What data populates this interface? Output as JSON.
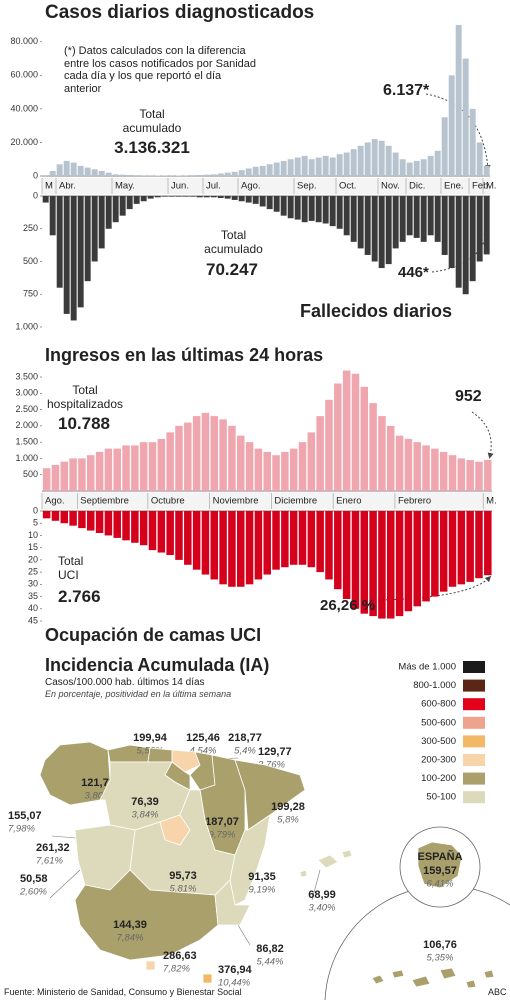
{
  "chart_data": [
    {
      "type": "bar",
      "title": "Casos diarios diagnosticados",
      "color": "#b7c4cf",
      "categories": [
        "M",
        null,
        "Abr.",
        null,
        null,
        null,
        null,
        null,
        null,
        null,
        "May.",
        null,
        null,
        null,
        null,
        null,
        null,
        null,
        "Jun.",
        null,
        null,
        null,
        null,
        "Jul.",
        null,
        null,
        null,
        null,
        "Ago.",
        null,
        null,
        null,
        null,
        null,
        null,
        null,
        "Sep.",
        null,
        null,
        null,
        null,
        null,
        "Oct.",
        null,
        null,
        null,
        null,
        null,
        "Nov.",
        null,
        null,
        null,
        "Dic.",
        null,
        null,
        null,
        null,
        "Ene.",
        null,
        null,
        null,
        "Feb.",
        null,
        "M."
      ],
      "values": [
        500,
        3000,
        7000,
        9000,
        8000,
        6000,
        5000,
        4000,
        3000,
        2000,
        1000,
        800,
        600,
        500,
        400,
        400,
        300,
        350,
        400,
        300,
        400,
        500,
        600,
        800,
        1000,
        1500,
        2000,
        2500,
        3500,
        4500,
        5500,
        6000,
        7000,
        8000,
        9000,
        10000,
        11000,
        12000,
        10000,
        11000,
        12000,
        11000,
        13000,
        14000,
        16000,
        18000,
        20000,
        22000,
        21000,
        18000,
        14000,
        10000,
        8000,
        9000,
        10000,
        12000,
        15000,
        35000,
        60000,
        90000,
        70000,
        40000,
        20000,
        6137
      ],
      "ylim": [
        0,
        90000
      ],
      "yticks": [
        0,
        {
          "value": 20000,
          "label": "20.000"
        },
        {
          "value": 40000,
          "label": "40.000"
        },
        {
          "value": 60000,
          "label": "60.000"
        },
        {
          "value": 80000,
          "label": "80.000"
        }
      ],
      "annotations": [
        "(*) Datos calculados con la diferencia entre los casos notificados por Sanidad cada día y los que reportó el día anterior",
        "Total acumulado",
        "3.136.321",
        "6.137*"
      ]
    },
    {
      "type": "bar",
      "title": "Fallecidos diarios",
      "color": "#3b3b3b",
      "y_inverted": true,
      "values": [
        50,
        300,
        700,
        900,
        950,
        850,
        650,
        500,
        400,
        250,
        200,
        150,
        100,
        60,
        40,
        20,
        10,
        5,
        5,
        5,
        5,
        5,
        10,
        10,
        10,
        15,
        20,
        30,
        40,
        50,
        60,
        80,
        100,
        120,
        150,
        170,
        180,
        200,
        190,
        200,
        210,
        230,
        250,
        300,
        350,
        400,
        450,
        500,
        550,
        520,
        400,
        350,
        300,
        320,
        350,
        300,
        350,
        450,
        550,
        700,
        750,
        650,
        500,
        446
      ],
      "ylim": [
        0,
        1000
      ],
      "yticks": [
        0,
        250,
        500,
        750,
        {
          "value": 1000,
          "label": "1.000"
        }
      ],
      "annotations": [
        "Total acumulado",
        "70.247",
        "446*"
      ]
    },
    {
      "type": "bar",
      "title": "Ingresos en las últimas 24 horas",
      "color": "#f0a6ae",
      "categories": [
        "Ago.",
        null,
        null,
        null,
        "Septiembre",
        null,
        null,
        null,
        null,
        null,
        null,
        null,
        "Octubre",
        null,
        null,
        null,
        null,
        null,
        null,
        "Noviembre",
        null,
        null,
        null,
        null,
        null,
        null,
        "Diciembre",
        null,
        null,
        null,
        null,
        null,
        null,
        "Enero",
        null,
        null,
        null,
        null,
        null,
        null,
        "Febrero",
        null,
        null,
        null,
        null,
        null,
        null,
        null,
        null,
        null,
        "M."
      ],
      "values": [
        700,
        800,
        900,
        1000,
        1000,
        1100,
        1200,
        1300,
        1300,
        1400,
        1400,
        1500,
        1500,
        1600,
        1800,
        2000,
        2100,
        2300,
        2400,
        2300,
        2200,
        2000,
        1700,
        1500,
        1300,
        1200,
        1100,
        1200,
        1300,
        1500,
        1800,
        2300,
        2800,
        3300,
        3700,
        3600,
        3200,
        2700,
        2300,
        2000,
        1700,
        1600,
        1500,
        1400,
        1300,
        1200,
        1100,
        1000,
        950,
        900,
        952
      ],
      "ylim": [
        0,
        3700
      ],
      "yticks": [
        500,
        {
          "value": 1000,
          "label": "1.000"
        },
        {
          "value": 1500,
          "label": "1.500"
        },
        {
          "value": 2000,
          "label": "2.000"
        },
        {
          "value": 2500,
          "label": "2.500"
        },
        {
          "value": 3000,
          "label": "3.000"
        },
        {
          "value": 3500,
          "label": "3.500"
        }
      ],
      "annotations": [
        "Total hospitalizados",
        "10.788",
        "952"
      ]
    },
    {
      "type": "bar",
      "title": "Ocupación de camas UCI",
      "color": "#d4001c",
      "y_inverted": true,
      "values": [
        3,
        4,
        5,
        6,
        7,
        8,
        9,
        10,
        11,
        12,
        13,
        14,
        16,
        17,
        18,
        20,
        22,
        24,
        26,
        28,
        30,
        31,
        31,
        30,
        28,
        26,
        24,
        23,
        22,
        22,
        23,
        25,
        28,
        32,
        36,
        40,
        42,
        43,
        44,
        44,
        43,
        41,
        39,
        37,
        35,
        33,
        31,
        30,
        29,
        27.5,
        26.26
      ],
      "ylim": [
        0,
        45
      ],
      "yticks": [
        0,
        5,
        10,
        15,
        20,
        25,
        30,
        35,
        40,
        45
      ],
      "annotations": [
        "Total UCI",
        "2.766",
        "26,26 %"
      ]
    }
  ],
  "map": {
    "title": "Incidencia Acumulada (IA)",
    "subtitle": "Casos/100.000 hab. últimos 14 días",
    "note": "En porcentaje, positividad en la última semana",
    "legend": [
      {
        "label": "Más de 1.000",
        "color": "#1b1b1b"
      },
      {
        "label": "800-1.000",
        "color": "#5b2616"
      },
      {
        "label": "600-800",
        "color": "#e2001a"
      },
      {
        "label": "500-600",
        "color": "#eea38c"
      },
      {
        "label": "300-500",
        "color": "#f2b866"
      },
      {
        "label": "200-300",
        "color": "#f7d4a9"
      },
      {
        "label": "100-200",
        "color": "#a9a06c"
      },
      {
        "label": "50-100",
        "color": "#dddabb"
      }
    ],
    "regions": [
      {
        "value": "199,94",
        "positivity": "5,53%",
        "color": "#a9a06c"
      },
      {
        "value": "125,46",
        "positivity": "4,54%",
        "color": "#a9a06c"
      },
      {
        "value": "218,77",
        "positivity": "5,4%",
        "color": "#f7d4a9"
      },
      {
        "value": "129,77",
        "positivity": "3,76%",
        "color": "#a9a06c"
      },
      {
        "value": "121,73",
        "positivity": "3,80%",
        "color": "#a9a06c"
      },
      {
        "value": "76,39",
        "positivity": "3,84%",
        "color": "#dddabb"
      },
      {
        "value": "187,07",
        "positivity": "9,79%",
        "color": "#a9a06c"
      },
      {
        "value": "199,28",
        "positivity": "5,8%",
        "color": "#a9a06c"
      },
      {
        "value": "155,07",
        "positivity": "7,98%",
        "color": "#a9a06c"
      },
      {
        "value": "261,32",
        "positivity": "7,61%",
        "color": "#f7d4a9"
      },
      {
        "value": "50,58",
        "positivity": "2,60%",
        "color": "#dddabb"
      },
      {
        "value": "95,73",
        "positivity": "5,81%",
        "color": "#dddabb"
      },
      {
        "value": "91,35",
        "positivity": "9,19%",
        "color": "#dddabb"
      },
      {
        "value": "68,99",
        "positivity": "3,40%",
        "color": "#dddabb"
      },
      {
        "value": "144,39",
        "positivity": "7,84%",
        "color": "#a9a06c"
      },
      {
        "value": "86,82",
        "positivity": "5,44%",
        "color": "#dddabb"
      },
      {
        "value": "286,63",
        "positivity": "7,82%",
        "color": "#f7d4a9"
      },
      {
        "value": "376,94",
        "positivity": "10,44%",
        "color": "#f2b866"
      },
      {
        "name": "ESPAÑA",
        "value": "159,57",
        "positivity": "6,41%",
        "color": "#a9a06c"
      },
      {
        "value": "106,76",
        "positivity": "5,35%",
        "color": "#a9a06c"
      }
    ]
  },
  "footer": {
    "source": "Fuente: Ministerio de Sanidad, Consumo y Bienestar Social",
    "brand": "ABC"
  }
}
